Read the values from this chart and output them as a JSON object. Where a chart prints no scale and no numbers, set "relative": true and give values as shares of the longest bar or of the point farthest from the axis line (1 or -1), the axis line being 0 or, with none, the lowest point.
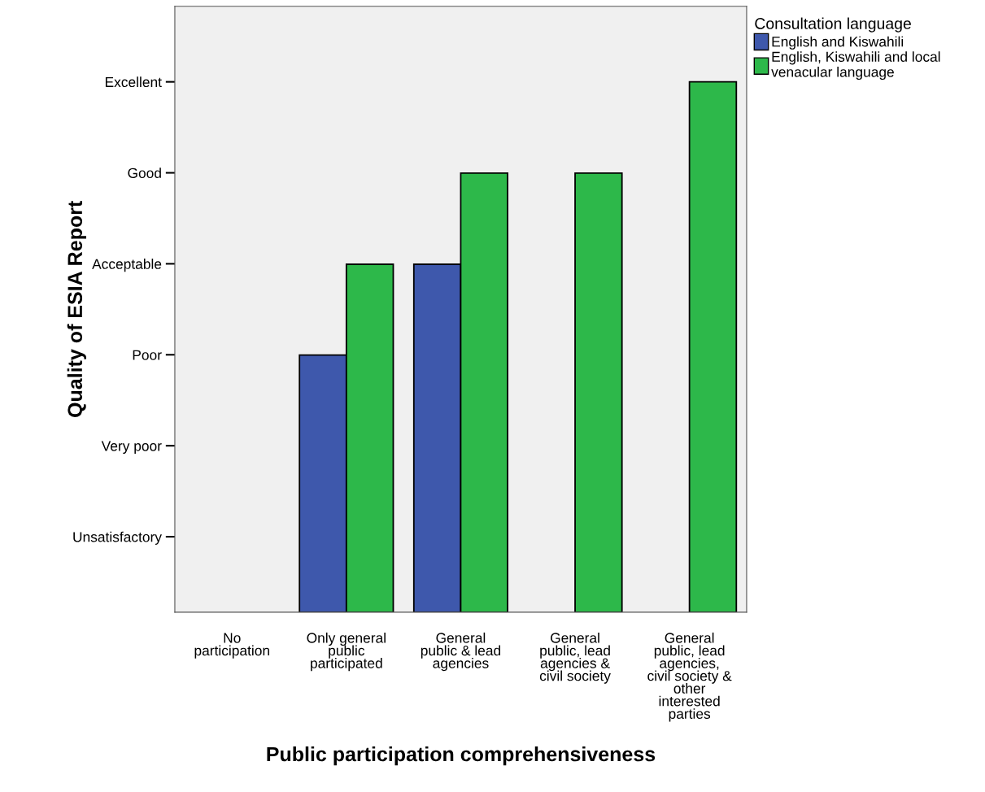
{
  "chart_data": {
    "type": "bar",
    "relative": true,
    "xlabel": "Public participation comprehensiveness",
    "ylabel": "Quality of ESIA Report",
    "categories": [
      "No\nparticipation",
      "Only general\npublic\nparticipated",
      "General\npublic & lead\nagencies",
      "General\npublic, lead\nagencies &\ncivil society",
      "General\npublic, lead\nagencies,\ncivil society &\nother\ninterested\nparties"
    ],
    "series": [
      {
        "name": "English and Kiswahili",
        "color": "#3e58ac",
        "values": [
          null,
          0.485,
          0.656,
          null,
          null
        ]
      },
      {
        "name": "English, Kiswahili and local\nvenacular language",
        "color": "#2db84a",
        "values": [
          null,
          0.656,
          0.828,
          0.828,
          1
        ]
      }
    ],
    "annotations": [
      "Unsatisfactory",
      "Very poor",
      "Poor",
      "Acceptable",
      "Good",
      "Excellent"
    ],
    "legend": "right",
    "legend_title": "Consultation language"
  }
}
